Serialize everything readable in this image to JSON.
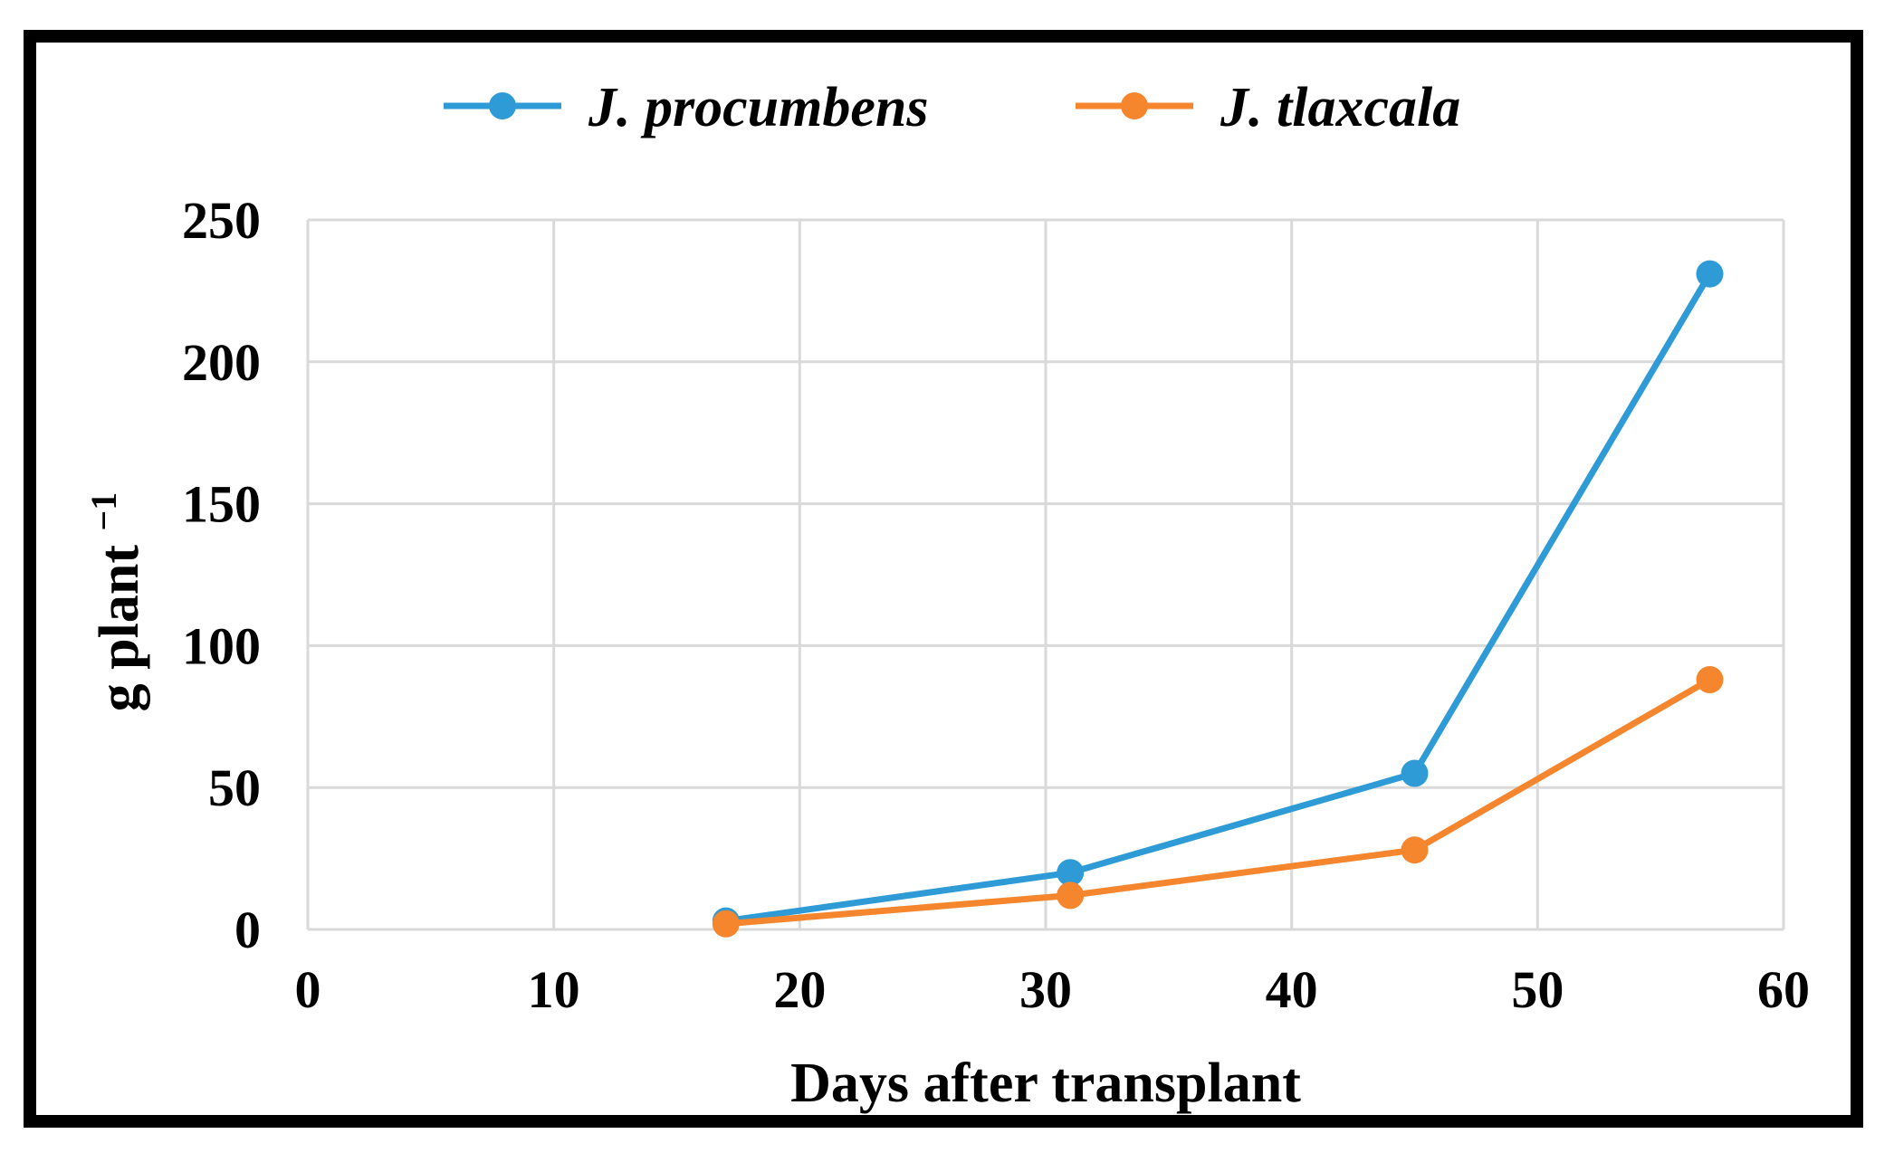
{
  "chart_data": {
    "type": "line",
    "title": "",
    "xlabel": "Days after transplant",
    "ylabel": "g plant",
    "ylabel_superscript": "−1",
    "xlim": [
      0,
      60
    ],
    "ylim": [
      0,
      250
    ],
    "xticks": [
      0,
      10,
      20,
      30,
      40,
      50,
      60
    ],
    "yticks": [
      0,
      50,
      100,
      150,
      200,
      250
    ],
    "grid": true,
    "legend_position": "top-center",
    "series": [
      {
        "name": "J. procumbens",
        "color": "#2e9bd6",
        "x": [
          17,
          31,
          45,
          57
        ],
        "y": [
          3,
          20,
          55,
          231
        ]
      },
      {
        "name": "J. tlaxcala",
        "color": "#f5862e",
        "x": [
          17,
          31,
          45,
          57
        ],
        "y": [
          2,
          12,
          28,
          88
        ]
      }
    ]
  }
}
